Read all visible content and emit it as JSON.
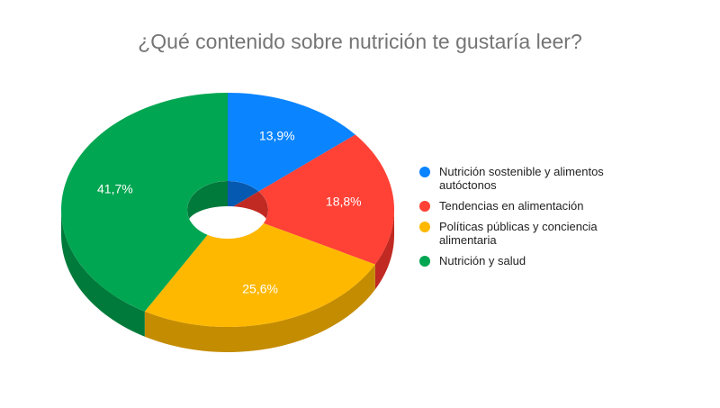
{
  "chart_data": {
    "type": "pie",
    "style": "3d-donut",
    "title": "¿Qué contenido sobre nutrición te gustaría leer?",
    "legend_position": "right",
    "series": [
      {
        "name": "Nutrición sostenible y alimentos autóctonos",
        "value": 13.9,
        "label": "13,9%",
        "color": "#0a84ff",
        "dark": "#0659b0"
      },
      {
        "name": "Tendencias en alimentación",
        "value": 18.8,
        "label": "18,8%",
        "color": "#ff4136",
        "dark": "#c02a22"
      },
      {
        "name": "Políticas públicas y conciencia alimentaria",
        "value": 25.6,
        "label": "25,6%",
        "color": "#ffb800",
        "dark": "#c48c00"
      },
      {
        "name": "Nutrición y salud",
        "value": 41.7,
        "label": "41,7%",
        "color": "#00a651",
        "dark": "#007a3b"
      }
    ]
  }
}
